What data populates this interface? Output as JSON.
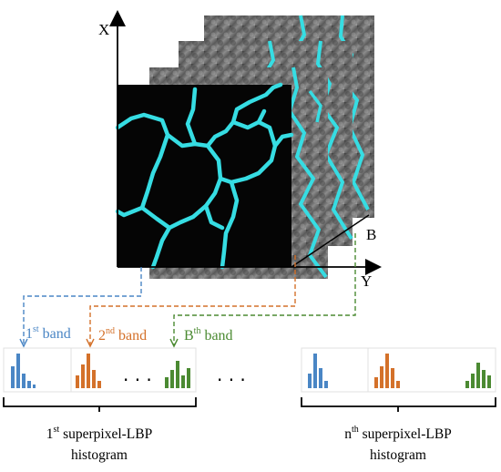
{
  "axes": {
    "x_label": "X",
    "y_label": "Y",
    "band_axis_label": "B"
  },
  "bands": [
    {
      "prefix": "1",
      "sup": "st",
      "suffix": " band",
      "color": "#4a86c5"
    },
    {
      "prefix": "2",
      "sup": "nd",
      "suffix": " band",
      "color": "#d4712a"
    },
    {
      "prefix": "B",
      "sup": "th",
      "suffix": "  band",
      "color": "#4b8a32"
    }
  ],
  "ellipsis": "·   ·   ·",
  "captions": [
    {
      "prefix": "1",
      "sup": "st",
      "line1_rest": " superpixel-LBP",
      "line2": "histogram"
    },
    {
      "prefix": "n",
      "sup": "th",
      "line1_rest": " superpixel-LBP",
      "line2": "histogram"
    }
  ],
  "colors": {
    "boundary": "#36dde3",
    "frame_bg": "#050505",
    "scan_gray": "#7a7a7a"
  }
}
